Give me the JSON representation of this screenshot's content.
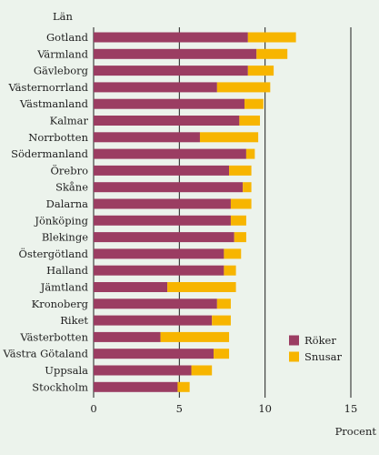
{
  "chart_data": {
    "type": "bar",
    "orientation": "horizontal",
    "stacked": true,
    "category_header": "Län",
    "xlabel": "Procent",
    "xlim": [
      0,
      15
    ],
    "xticks": [
      0,
      5,
      10,
      15
    ],
    "grid": "vertical",
    "legend_position": "bottom-right",
    "categories": [
      "Gotland",
      "Värmland",
      "Gävleborg",
      "Västernorrland",
      "Västmanland",
      "Kalmar",
      "Norrbotten",
      "Södermanland",
      "Örebro",
      "Skåne",
      "Dalarna",
      "Jönköping",
      "Blekinge",
      "Östergötland",
      "Halland",
      "Jämtland",
      "Kronoberg",
      "Riket",
      "Västerbotten",
      "Västra Götaland",
      "Uppsala",
      "Stockholm"
    ],
    "series": [
      {
        "name": "Röker",
        "color": "#9b3d62",
        "values": [
          9.0,
          9.5,
          9.0,
          7.2,
          8.8,
          8.5,
          6.2,
          8.9,
          7.9,
          8.7,
          8.0,
          8.0,
          8.2,
          7.6,
          7.6,
          4.3,
          7.2,
          6.9,
          3.9,
          7.0,
          5.7,
          4.9
        ]
      },
      {
        "name": "Snusar",
        "color": "#f7b500",
        "values": [
          2.8,
          1.8,
          1.5,
          3.1,
          1.1,
          1.2,
          3.4,
          0.5,
          1.3,
          0.5,
          1.2,
          0.9,
          0.7,
          1.0,
          0.7,
          4.0,
          0.8,
          1.1,
          4.0,
          0.9,
          1.2,
          0.7
        ]
      }
    ]
  },
  "colors": {
    "background": "#ecf3ec",
    "axis": "#1e1e1e"
  }
}
